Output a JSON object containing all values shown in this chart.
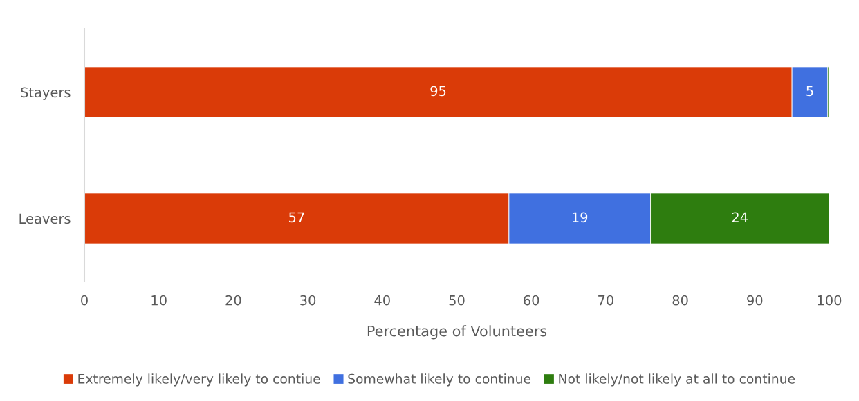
{
  "chart_data": {
    "type": "bar",
    "orientation": "horizontal",
    "stacked": true,
    "categories": [
      "Stayers",
      "Leavers"
    ],
    "series": [
      {
        "name": "Extremely likely/very likely to contiue",
        "color": "#da3b08",
        "values": [
          95,
          57
        ],
        "value_labels": [
          "95",
          "57"
        ]
      },
      {
        "name": "Somewhat likely to continue",
        "color": "#4070e0",
        "values": [
          4.8,
          19
        ],
        "value_labels": [
          "5",
          "19"
        ]
      },
      {
        "name": "Not likely/not likely at all to continue",
        "color": "#2e7d0f",
        "values": [
          0.2,
          24
        ],
        "value_labels": [
          null,
          "24"
        ]
      }
    ],
    "xlabel": "Percentage of Volunteers",
    "xlim": [
      0,
      100
    ],
    "xticks": [
      0,
      10,
      20,
      30,
      40,
      50,
      60,
      70,
      80,
      90,
      100
    ],
    "legend": "bottom"
  }
}
